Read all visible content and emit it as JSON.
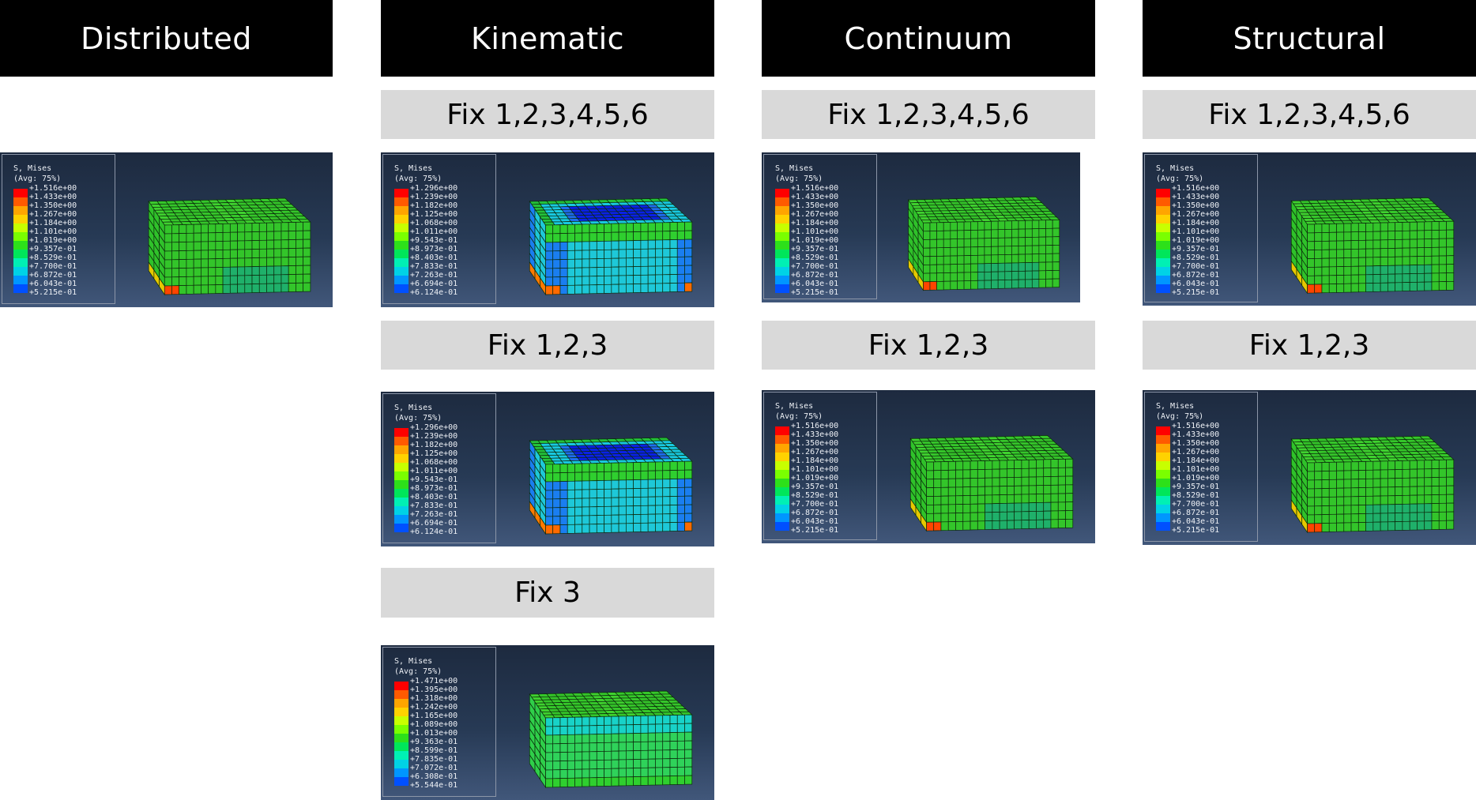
{
  "columns": [
    {
      "title": "Distributed"
    },
    {
      "title": "Kinematic",
      "rows": [
        "Fix 1,2,3,4,5,6",
        "Fix 1,2,3",
        "Fix 3"
      ]
    },
    {
      "title": "Continuum",
      "rows": [
        "Fix 1,2,3,4,5,6",
        "Fix 1,2,3"
      ]
    },
    {
      "title": "Structural",
      "rows": [
        "Fix 1,2,3,4,5,6",
        "Fix 1,2,3"
      ]
    }
  ],
  "legend": {
    "title": "S, Mises",
    "avg": "(Avg: 75%)",
    "colors": [
      "#ff0000",
      "#ff5a00",
      "#ffa500",
      "#ffd200",
      "#c8ff00",
      "#7aff00",
      "#2de01a",
      "#00e65a",
      "#00f0b4",
      "#00d2e6",
      "#0096ff",
      "#0050ff",
      "#0000ff"
    ],
    "standard": [
      "+1.516e+00",
      "+1.433e+00",
      "+1.350e+00",
      "+1.267e+00",
      "+1.184e+00",
      "+1.101e+00",
      "+1.019e+00",
      "+9.357e-01",
      "+8.529e-01",
      "+7.700e-01",
      "+6.872e-01",
      "+6.043e-01",
      "+5.215e-01"
    ],
    "kinematic_rigid": [
      "+1.296e+00",
      "+1.239e+00",
      "+1.182e+00",
      "+1.125e+00",
      "+1.068e+00",
      "+1.011e+00",
      "+9.543e-01",
      "+8.973e-01",
      "+8.403e-01",
      "+7.833e-01",
      "+7.263e-01",
      "+6.694e-01",
      "+6.124e-01"
    ],
    "kinematic_fix3": [
      "+1.471e+00",
      "+1.395e+00",
      "+1.318e+00",
      "+1.242e+00",
      "+1.165e+00",
      "+1.089e+00",
      "+1.013e+00",
      "+9.363e-01",
      "+8.599e-01",
      "+7.835e-01",
      "+7.072e-01",
      "+6.308e-01",
      "+5.544e-01"
    ]
  }
}
